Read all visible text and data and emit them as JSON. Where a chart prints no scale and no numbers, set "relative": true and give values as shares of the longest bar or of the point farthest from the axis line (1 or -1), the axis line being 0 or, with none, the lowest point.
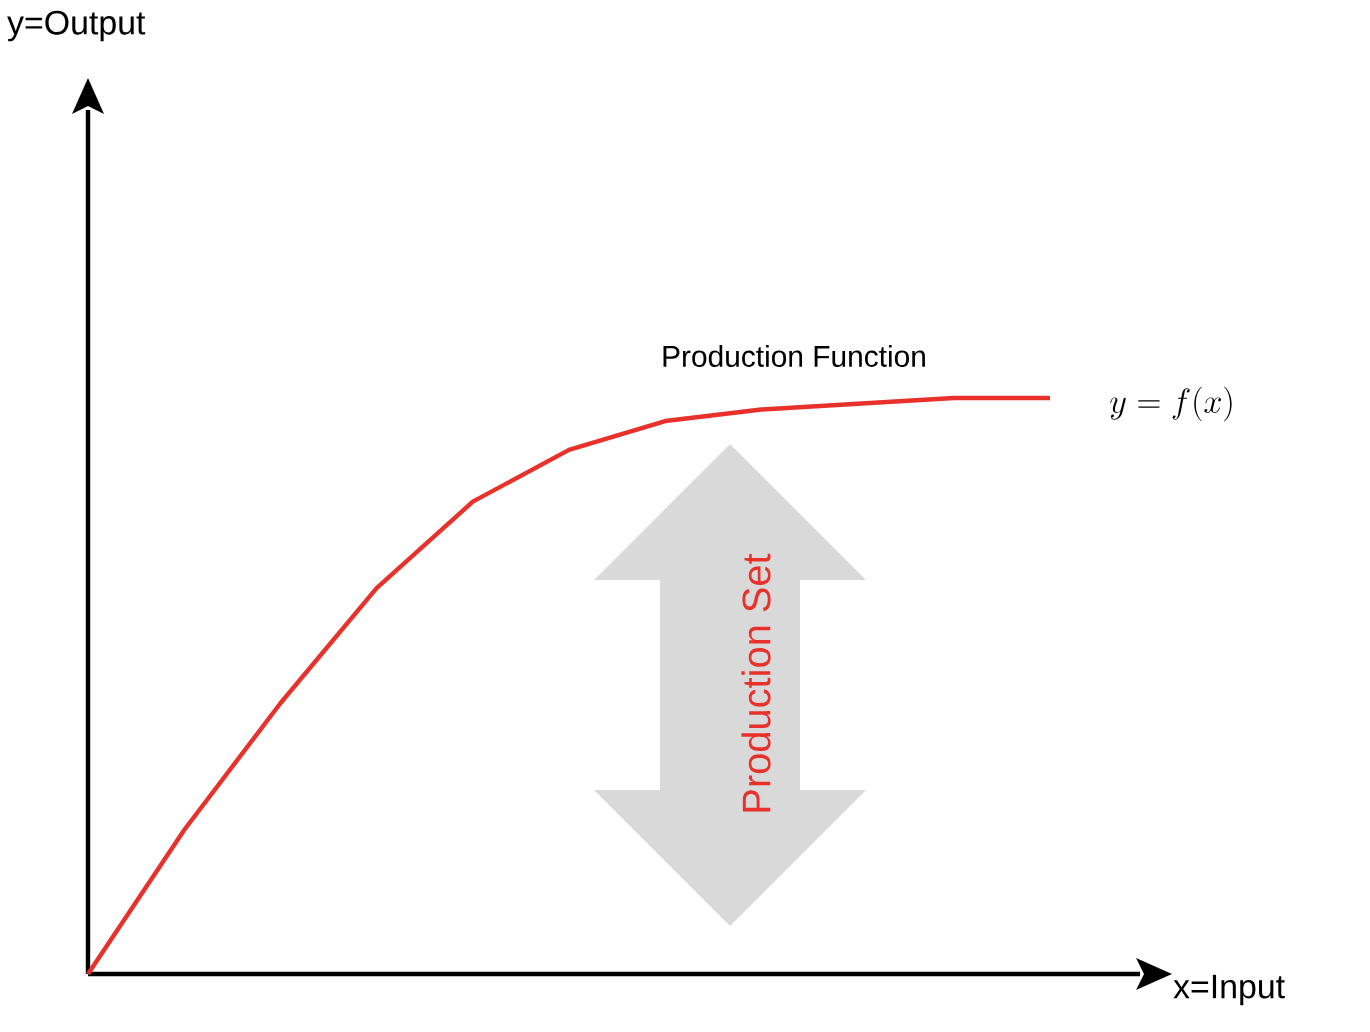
{
  "chart_data": {
    "type": "line",
    "relative": true,
    "xlabel": "x=Input",
    "categories": [
      null,
      null,
      null,
      null,
      null,
      null,
      null,
      null,
      null,
      null,
      null
    ],
    "series": [
      {
        "color": "#e8312a",
        "values": [
          0,
          0.25,
          0.47,
          0.67,
          0.82,
          0.91,
          0.96,
          0.98,
          0.99,
          1,
          1
        ]
      }
    ],
    "annotations": [
      "y=Output",
      "Production Function",
      "y = f(x)",
      "Production Set"
    ],
    "marker": "none",
    "line_style": "solid"
  }
}
